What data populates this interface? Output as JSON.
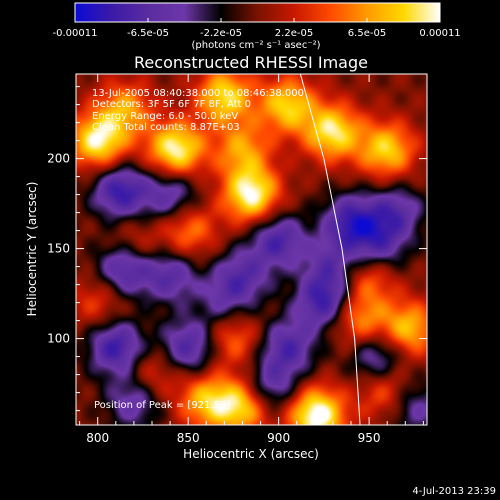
{
  "chart_data": {
    "type": "heatmap",
    "title": "Reconstructed RHESSI Image",
    "xlabel": "Heliocentric X (arcsec)",
    "ylabel": "Heliocentric Y (arcsec)",
    "xlim": [
      788,
      982
    ],
    "ylim": [
      52,
      247
    ],
    "x_ticks": [
      800,
      850,
      900,
      950
    ],
    "y_ticks": [
      100,
      150,
      200
    ],
    "colorbar": {
      "min": -0.00011,
      "max": 0.00011,
      "tick_labels": [
        "-0.00011",
        "-6.5e-05",
        "-2.2e-05",
        "2.2e-05",
        "6.5e-05",
        "0.00011"
      ],
      "unit_label": "(photons cm⁻² s⁻¹ asec⁻²)",
      "colors": [
        "#0b0bd4",
        "#3a1aa8",
        "#5a2ca0",
        "#6d37a8",
        "#000000",
        "#7a1200",
        "#c81800",
        "#ff4a00",
        "#ff9a00",
        "#ffd800",
        "#ffffff"
      ]
    },
    "annotations": [
      "13-Jul-2005 08:40:38.000 to 08:46:38.000",
      "Detectors: 3F 5F 6F 7F 8F, Att 0",
      "Energy Range: 6.0 - 50.0 keV",
      "Clean    Total counts: 8.87E+03",
      "Position of Peak = [921,57]"
    ],
    "peak_position": [
      921,
      57
    ],
    "blobs": [
      {
        "x": 800,
        "y": 210,
        "v": 0.95
      },
      {
        "x": 815,
        "y": 228,
        "v": 0.6
      },
      {
        "x": 843,
        "y": 205,
        "v": 1.0
      },
      {
        "x": 870,
        "y": 235,
        "v": 0.85
      },
      {
        "x": 905,
        "y": 230,
        "v": 0.8
      },
      {
        "x": 930,
        "y": 215,
        "v": 0.9
      },
      {
        "x": 960,
        "y": 205,
        "v": 0.8
      },
      {
        "x": 880,
        "y": 205,
        "v": 0.6
      },
      {
        "x": 885,
        "y": 180,
        "v": 1.0
      },
      {
        "x": 820,
        "y": 150,
        "v": 0.45
      },
      {
        "x": 850,
        "y": 160,
        "v": 0.55
      },
      {
        "x": 950,
        "y": 135,
        "v": 0.55
      },
      {
        "x": 972,
        "y": 105,
        "v": 0.75
      },
      {
        "x": 945,
        "y": 110,
        "v": 0.6
      },
      {
        "x": 875,
        "y": 100,
        "v": 0.5
      },
      {
        "x": 800,
        "y": 120,
        "v": 0.35
      },
      {
        "x": 860,
        "y": 65,
        "v": 0.7
      },
      {
        "x": 880,
        "y": 62,
        "v": 0.85
      },
      {
        "x": 921,
        "y": 57,
        "v": 1.1
      },
      {
        "x": 960,
        "y": 70,
        "v": 0.5
      },
      {
        "x": 830,
        "y": 80,
        "v": 0.4
      },
      {
        "x": 812,
        "y": 182,
        "v": -0.8
      },
      {
        "x": 840,
        "y": 180,
        "v": -0.6
      },
      {
        "x": 900,
        "y": 155,
        "v": -0.7
      },
      {
        "x": 940,
        "y": 165,
        "v": -0.75
      },
      {
        "x": 965,
        "y": 170,
        "v": -0.6
      },
      {
        "x": 815,
        "y": 140,
        "v": -0.85
      },
      {
        "x": 840,
        "y": 135,
        "v": -0.6
      },
      {
        "x": 880,
        "y": 135,
        "v": -0.55
      },
      {
        "x": 925,
        "y": 120,
        "v": -0.75
      },
      {
        "x": 955,
        "y": 150,
        "v": -0.6
      },
      {
        "x": 810,
        "y": 95,
        "v": -0.8
      },
      {
        "x": 850,
        "y": 95,
        "v": -0.7
      },
      {
        "x": 905,
        "y": 95,
        "v": -0.65
      },
      {
        "x": 955,
        "y": 90,
        "v": -0.6
      },
      {
        "x": 820,
        "y": 65,
        "v": -0.55
      },
      {
        "x": 895,
        "y": 72,
        "v": -0.6
      },
      {
        "x": 975,
        "y": 62,
        "v": -0.5
      },
      {
        "x": 870,
        "y": 120,
        "v": -0.4
      },
      {
        "x": 930,
        "y": 140,
        "v": -0.5
      }
    ],
    "limb_arc": [
      [
        912,
        247
      ],
      [
        925,
        200
      ],
      [
        935,
        150
      ],
      [
        942,
        100
      ],
      [
        945,
        52
      ]
    ]
  },
  "footer": {
    "timestamp": "4-Jul-2013 23:39"
  }
}
